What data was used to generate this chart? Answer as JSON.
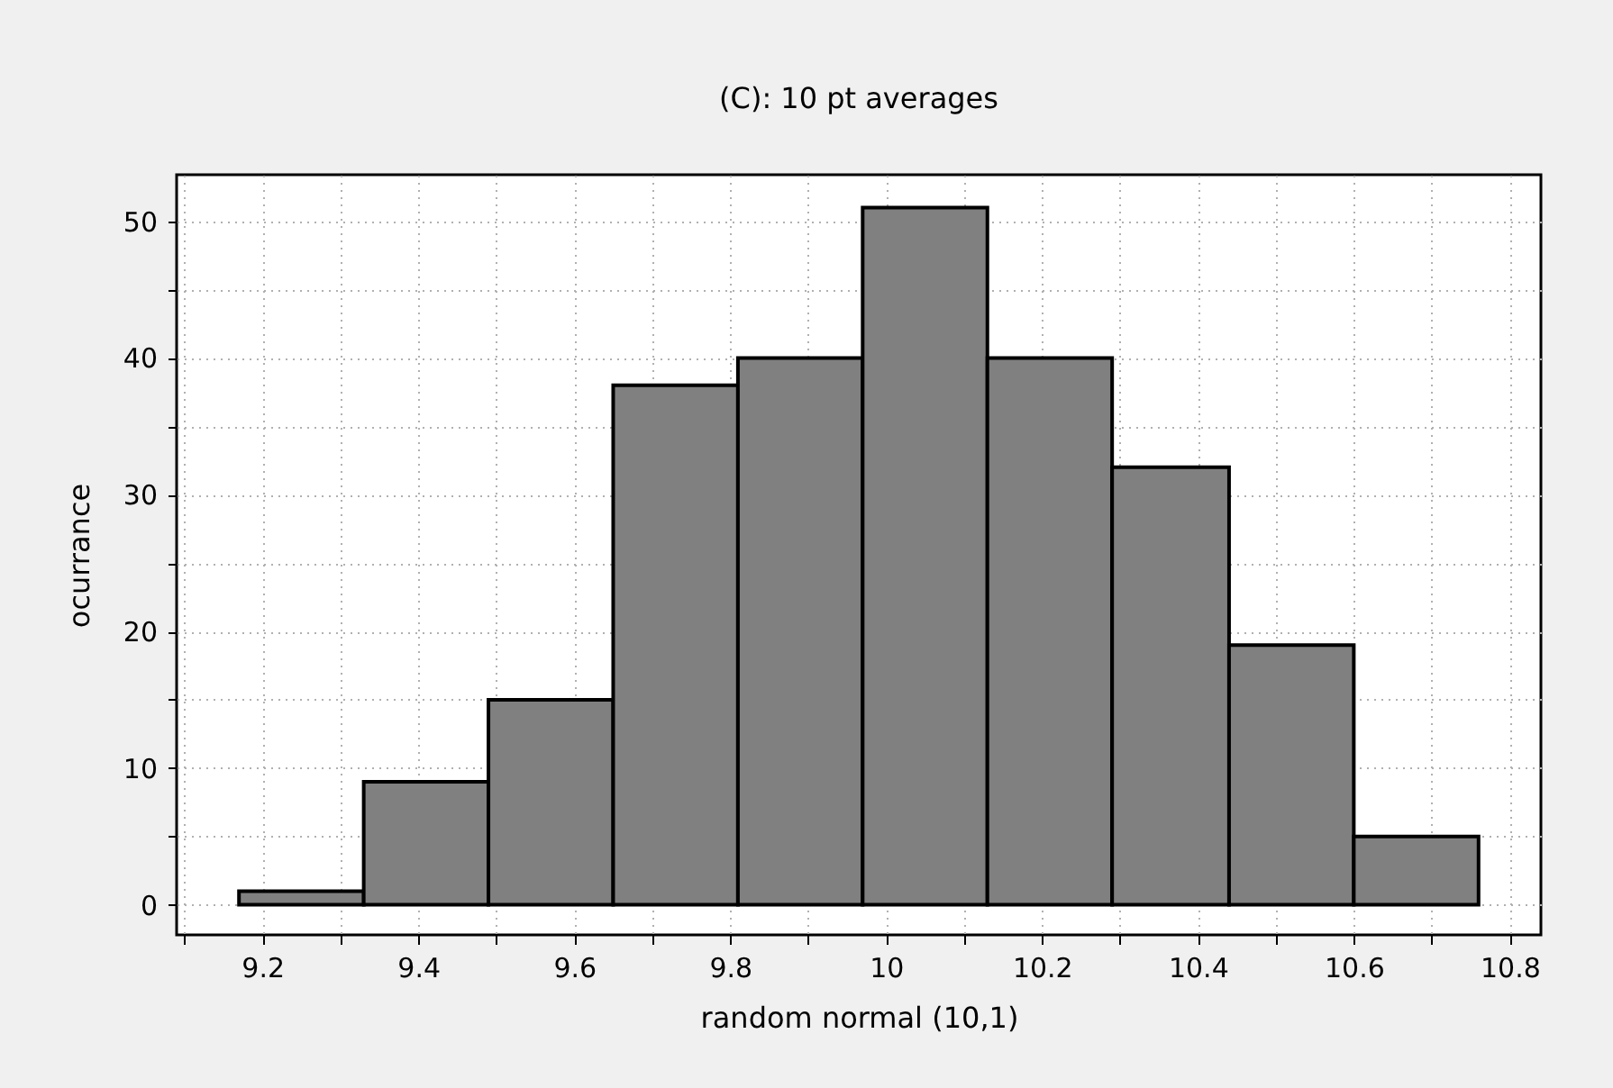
{
  "chart_data": {
    "type": "histogram",
    "title": "(C): 10 pt averages",
    "xlabel": "random normal (10,1)",
    "ylabel": "ocurrance",
    "bins": [
      9.17,
      9.33,
      9.49,
      9.65,
      9.81,
      9.97,
      10.13,
      10.29,
      10.44,
      10.6,
      10.76
    ],
    "values": [
      1,
      9,
      15,
      38,
      40,
      51,
      40,
      32,
      19,
      5
    ],
    "color": "#808080",
    "xlim": [
      9.09,
      10.84
    ],
    "ylim": [
      -2.2,
      53.4
    ],
    "xticks": [
      {
        "value": 9.1,
        "label": null
      },
      9.2,
      {
        "value": 9.3,
        "label": null
      },
      9.4,
      {
        "value": 9.5,
        "label": null
      },
      9.6,
      {
        "value": 9.7,
        "label": null
      },
      9.8,
      {
        "value": 9.9,
        "label": null
      },
      10,
      {
        "value": 10.1,
        "label": null
      },
      10.2,
      {
        "value": 10.3,
        "label": null
      },
      10.4,
      {
        "value": 10.5,
        "label": null
      },
      10.6,
      {
        "value": 10.7,
        "label": null
      },
      10.8
    ],
    "yticks": [
      0,
      {
        "value": 5,
        "label": null
      },
      10,
      {
        "value": 15,
        "label": null
      },
      20,
      {
        "value": 25,
        "label": null
      },
      30,
      {
        "value": 35,
        "label": null
      },
      40,
      {
        "value": 45,
        "label": null
      },
      50
    ],
    "grid": true
  }
}
